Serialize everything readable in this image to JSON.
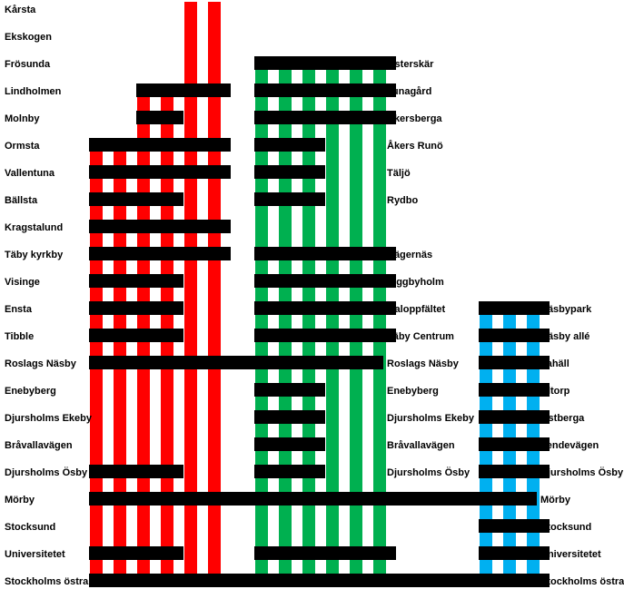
{
  "colors": {
    "red": "#ff0000",
    "green": "#00b050",
    "blue": "#00b0f0",
    "bar": "#000000",
    "bg": "#ffffff"
  },
  "left_labels": [
    "Kårsta",
    "Ekskogen",
    "Frösunda",
    "Lindholmen",
    "Molnby",
    "Ormsta",
    "Vallentuna",
    "Bällsta",
    "Kragstalund",
    "Täby kyrkby",
    "Visinge",
    "Ensta",
    "Tibble",
    "Roslags Näsby",
    "Enebyberg",
    "Djursholms Ekeby",
    "Bråvallavägen",
    "Djursholms Ösby",
    "Mörby",
    "Stocksund",
    "Universitetet",
    "Stockholms östra"
  ],
  "mid_labels": [
    "",
    "",
    "Österskär",
    "Tunagård",
    "Åkersberga",
    "Åkers Runö",
    "Täljö",
    "Rydbo",
    "",
    "Hägernäs",
    "Viggbyholm",
    "Galoppfältet",
    "Täby Centrum",
    "Roslags Näsby",
    "Enebyberg",
    "Djursholms Ekeby",
    "Bråvallavägen",
    "Djursholms Ösby",
    "",
    "",
    "",
    ""
  ],
  "right_labels": [
    "",
    "",
    "",
    "",
    "",
    "",
    "",
    "",
    "",
    "",
    "",
    "Näsbypark",
    "Näsby allé",
    "Lahäll",
    "Altorp",
    "Östberga",
    "Vendevägen",
    "Djursholms Ösby",
    "Mörby",
    "Stocksund",
    "Universitetet",
    "Stockholms östra"
  ],
  "branch_red": {
    "line_top_row": [
      5,
      5,
      3,
      3,
      0,
      0
    ],
    "bars": [
      [
        3,
        2,
        5
      ],
      [
        4,
        2,
        3
      ],
      [
        5,
        0,
        5
      ],
      [
        6,
        0,
        5
      ],
      [
        7,
        0,
        3
      ],
      [
        8,
        0,
        5
      ],
      [
        9,
        0,
        5
      ],
      [
        10,
        0,
        3
      ],
      [
        11,
        0,
        3
      ],
      [
        12,
        0,
        3
      ],
      [
        17,
        0,
        3
      ],
      [
        20,
        0,
        3
      ]
    ]
  },
  "branch_green": {
    "line_top_row": [
      2,
      2,
      2,
      2,
      2,
      2
    ],
    "bars": [
      [
        2,
        0,
        5
      ],
      [
        3,
        0,
        5
      ],
      [
        4,
        0,
        5
      ],
      [
        5,
        0,
        2
      ],
      [
        6,
        0,
        2
      ],
      [
        7,
        0,
        2
      ],
      [
        9,
        0,
        5
      ],
      [
        10,
        0,
        5
      ],
      [
        11,
        0,
        5
      ],
      [
        12,
        0,
        5
      ],
      [
        14,
        0,
        2
      ],
      [
        15,
        0,
        2
      ],
      [
        16,
        0,
        2
      ],
      [
        17,
        0,
        2
      ],
      [
        20,
        0,
        5
      ]
    ]
  },
  "branch_blue": {
    "line_top_row": [
      11,
      11,
      11
    ],
    "bars": [
      [
        11,
        0,
        2
      ],
      [
        12,
        0,
        2
      ],
      [
        13,
        0,
        2
      ],
      [
        14,
        0,
        2
      ],
      [
        15,
        0,
        2
      ],
      [
        16,
        0,
        2
      ],
      [
        17,
        0,
        2
      ],
      [
        19,
        0,
        2
      ],
      [
        20,
        0,
        2
      ],
      [
        21,
        0,
        2
      ]
    ]
  },
  "trunk_bars": [
    13,
    18,
    21
  ]
}
